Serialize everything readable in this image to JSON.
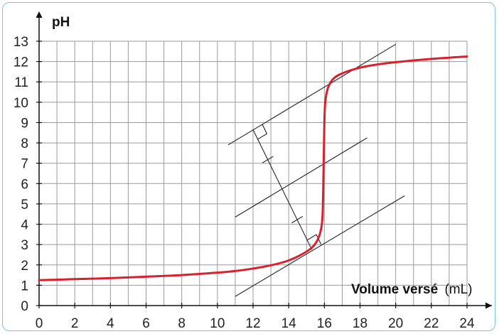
{
  "chart_data": {
    "type": "line",
    "ylabel": "pH",
    "xlabel_bold": "Volume versé",
    "xlabel_unit": "(mL)",
    "xlim": [
      0,
      24
    ],
    "ylim": [
      0,
      13
    ],
    "x_ticks": [
      0,
      2,
      4,
      6,
      8,
      10,
      12,
      14,
      16,
      18,
      20,
      22,
      24
    ],
    "y_ticks": [
      0,
      1,
      2,
      3,
      4,
      5,
      6,
      7,
      8,
      9,
      10,
      11,
      12,
      13
    ],
    "grid": true,
    "series": [
      {
        "color": "#d9202e",
        "points": [
          [
            0,
            1.25
          ],
          [
            2,
            1.3
          ],
          [
            4,
            1.35
          ],
          [
            6,
            1.42
          ],
          [
            8,
            1.5
          ],
          [
            10,
            1.62
          ],
          [
            11,
            1.7
          ],
          [
            12,
            1.82
          ],
          [
            13,
            1.98
          ],
          [
            14,
            2.22
          ],
          [
            14.8,
            2.55
          ],
          [
            15.3,
            2.85
          ],
          [
            15.6,
            3.2
          ],
          [
            15.8,
            3.7
          ],
          [
            15.9,
            4.5
          ],
          [
            15.95,
            6.5
          ],
          [
            16.0,
            9.0
          ],
          [
            16.05,
            10.0
          ],
          [
            16.2,
            10.7
          ],
          [
            16.5,
            11.15
          ],
          [
            17,
            11.42
          ],
          [
            18,
            11.7
          ],
          [
            19,
            11.86
          ],
          [
            20,
            11.97
          ],
          [
            22,
            12.13
          ],
          [
            24,
            12.25
          ]
        ]
      }
    ],
    "tangent_lines": [
      {
        "x1": 11.0,
        "y1": 0.45,
        "x2": 20.5,
        "y2": 5.4
      },
      {
        "x1": 11.0,
        "y1": 4.35,
        "x2": 18.4,
        "y2": 8.25
      },
      {
        "x1": 10.6,
        "y1": 7.9,
        "x2": 20.0,
        "y2": 12.85
      }
    ],
    "perpendicular": {
      "x1": 12.0,
      "y1": 8.65,
      "x2": 15.3,
      "y2": 2.75
    }
  }
}
